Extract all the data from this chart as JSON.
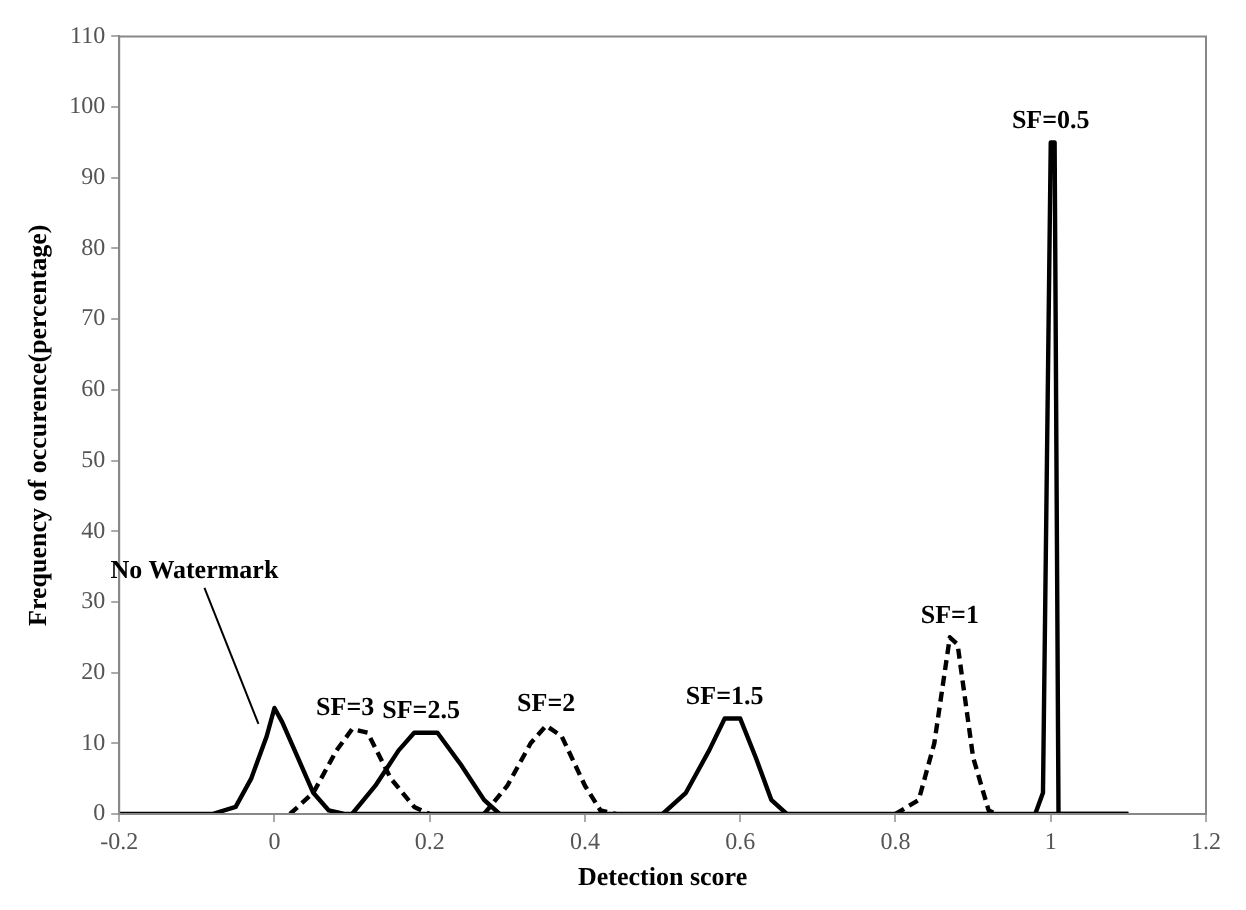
{
  "chart_data": {
    "type": "line",
    "xlabel": "Detection score",
    "ylabel": "Frequency of occurence(percentage)",
    "xlim": [
      -0.2,
      1.2
    ],
    "xticks": [
      -0.2,
      0,
      0.2,
      0.4,
      0.6,
      0.8,
      1,
      1.2
    ],
    "ylim": [
      0,
      110
    ],
    "yticks": [
      0,
      10,
      20,
      30,
      40,
      50,
      60,
      70,
      80,
      90,
      100,
      110
    ],
    "grid": false,
    "legend": false,
    "marker": "none",
    "series": [
      {
        "name": "No Watermark",
        "color": "#000000",
        "line_style": "solid",
        "x": [
          -0.2,
          -0.08,
          -0.05,
          -0.03,
          -0.01,
          0,
          0.01,
          0.03,
          0.05,
          0.07,
          0.09,
          1.1
        ],
        "values": [
          0,
          0,
          1,
          5,
          11,
          15,
          13,
          8,
          3,
          0.5,
          0,
          0
        ]
      },
      {
        "name": "SF=3",
        "color": "#000000",
        "line_style": "dashed",
        "x": [
          0.02,
          0.05,
          0.08,
          0.1,
          0.12,
          0.15,
          0.18,
          0.2
        ],
        "values": [
          0,
          3,
          9,
          12,
          11.5,
          5,
          1,
          0
        ]
      },
      {
        "name": "SF=2.5",
        "color": "#000000",
        "line_style": "solid",
        "x": [
          0.1,
          0.13,
          0.16,
          0.18,
          0.21,
          0.24,
          0.27,
          0.29
        ],
        "values": [
          0,
          4,
          9,
          11.5,
          11.5,
          7,
          2,
          0
        ]
      },
      {
        "name": "SF=2",
        "color": "#000000",
        "line_style": "dashed",
        "x": [
          0.27,
          0.3,
          0.33,
          0.35,
          0.37,
          0.4,
          0.42,
          0.44
        ],
        "values": [
          0,
          4,
          10,
          12.5,
          11,
          4,
          0.5,
          0
        ]
      },
      {
        "name": "SF=1.5",
        "color": "#000000",
        "line_style": "solid",
        "x": [
          0.5,
          0.53,
          0.56,
          0.58,
          0.6,
          0.62,
          0.64,
          0.66
        ],
        "values": [
          0,
          3,
          9,
          13.5,
          13.5,
          8,
          2,
          0
        ]
      },
      {
        "name": "SF=1",
        "color": "#000000",
        "line_style": "dashed",
        "x": [
          0.8,
          0.83,
          0.85,
          0.87,
          0.88,
          0.9,
          0.92,
          0.93
        ],
        "values": [
          0,
          2,
          10,
          25,
          24,
          8,
          0.5,
          0
        ]
      },
      {
        "name": "SF=0.5",
        "color": "#000000",
        "line_style": "solid",
        "x": [
          0.98,
          0.99,
          1,
          1.005,
          1.01,
          1.1
        ],
        "values": [
          0,
          3,
          95,
          95,
          0,
          0
        ]
      }
    ]
  }
}
